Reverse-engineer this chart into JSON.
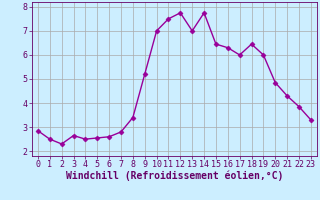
{
  "x": [
    0,
    1,
    2,
    3,
    4,
    5,
    6,
    7,
    8,
    9,
    10,
    11,
    12,
    13,
    14,
    15,
    16,
    17,
    18,
    19,
    20,
    21,
    22,
    23
  ],
  "y": [
    2.85,
    2.5,
    2.3,
    2.65,
    2.5,
    2.55,
    2.6,
    2.8,
    3.4,
    5.2,
    7.0,
    7.5,
    7.75,
    7.0,
    7.75,
    6.45,
    6.3,
    6.0,
    6.45,
    6.0,
    4.85,
    4.3,
    3.85,
    3.3
  ],
  "line_color": "#990099",
  "marker": "D",
  "marker_size": 2.5,
  "bg_color": "#cceeff",
  "grid_color": "#aaaaaa",
  "xlabel": "Windchill (Refroidissement éolien,°C)",
  "xlim": [
    -0.5,
    23.5
  ],
  "ylim": [
    1.8,
    8.2
  ],
  "yticks": [
    2,
    3,
    4,
    5,
    6,
    7,
    8
  ],
  "xticks": [
    0,
    1,
    2,
    3,
    4,
    5,
    6,
    7,
    8,
    9,
    10,
    11,
    12,
    13,
    14,
    15,
    16,
    17,
    18,
    19,
    20,
    21,
    22,
    23
  ],
  "tick_color": "#660066",
  "label_color": "#660066",
  "label_fontsize": 7,
  "tick_fontsize": 6,
  "linewidth": 1.0
}
